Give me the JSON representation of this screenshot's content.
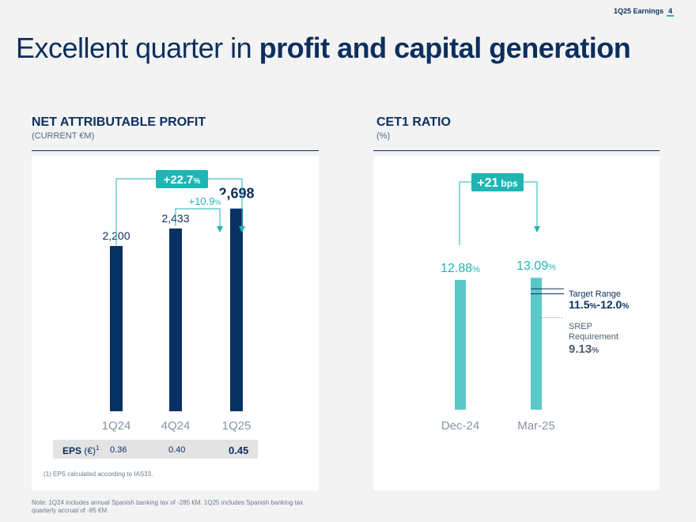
{
  "header": {
    "label": "1Q25 Earnings",
    "page": "4"
  },
  "title": {
    "normal": "Excellent quarter in ",
    "bold": "profit and capital generation"
  },
  "colors": {
    "navy": "#0b2f5e",
    "teal": "#1fb5b5",
    "bar_navy": "#073163",
    "bar_teal": "#5bc8c8"
  },
  "chart_data": [
    {
      "type": "bar",
      "title": "NET ATTRIBUTABLE PROFIT",
      "subtitle": "(CURRENT €M)",
      "categories": [
        "1Q24",
        "4Q24",
        "1Q25"
      ],
      "values": [
        2200,
        2433,
        2698
      ],
      "value_labels": [
        "2,200",
        "2,433",
        "2,698"
      ],
      "ylim": [
        0,
        3000
      ],
      "annotations": [
        {
          "from": "1Q24",
          "to": "1Q25",
          "num": "+22.7",
          "unit": "%",
          "style": "badge"
        },
        {
          "from": "4Q24",
          "to": "1Q25",
          "num": "+10.9",
          "unit": "%",
          "style": "text"
        }
      ]
    },
    {
      "type": "bar",
      "title": "CET1 RATIO",
      "subtitle": "(%)",
      "categories": [
        "Dec-24",
        "Mar-25"
      ],
      "values": [
        12.88,
        13.09
      ],
      "value_labels": [
        {
          "num": "12.88",
          "unit": "%"
        },
        {
          "num": "13.09",
          "unit": "%"
        }
      ],
      "ylim": [
        0,
        14.6
      ],
      "annotations": [
        {
          "from": "Dec-24",
          "to": "Mar-25",
          "num": "+21",
          "unit": "bps",
          "style": "badge"
        }
      ],
      "target_range": {
        "label": "Target Range",
        "low": 11.5,
        "high": 12.0,
        "low_num": "11.5",
        "high_num": "12.0",
        "unit": "%"
      },
      "srep": {
        "label_line1": "SREP",
        "label_line2": "Requirement",
        "value": 9.13,
        "num": "9.13",
        "unit": "%"
      }
    }
  ],
  "eps": {
    "label": "EPS",
    "unit": "(€)",
    "sup": "1",
    "values": [
      "0.36",
      "0.40",
      "0.45"
    ]
  },
  "footnote": "(1) EPS calculated according to IAS33.",
  "note": "Note: 1Q24 includes annual Spanish banking tax of -285 €M. 1Q25 includes Spanish banking tax quarterly accrual of -85 €M."
}
